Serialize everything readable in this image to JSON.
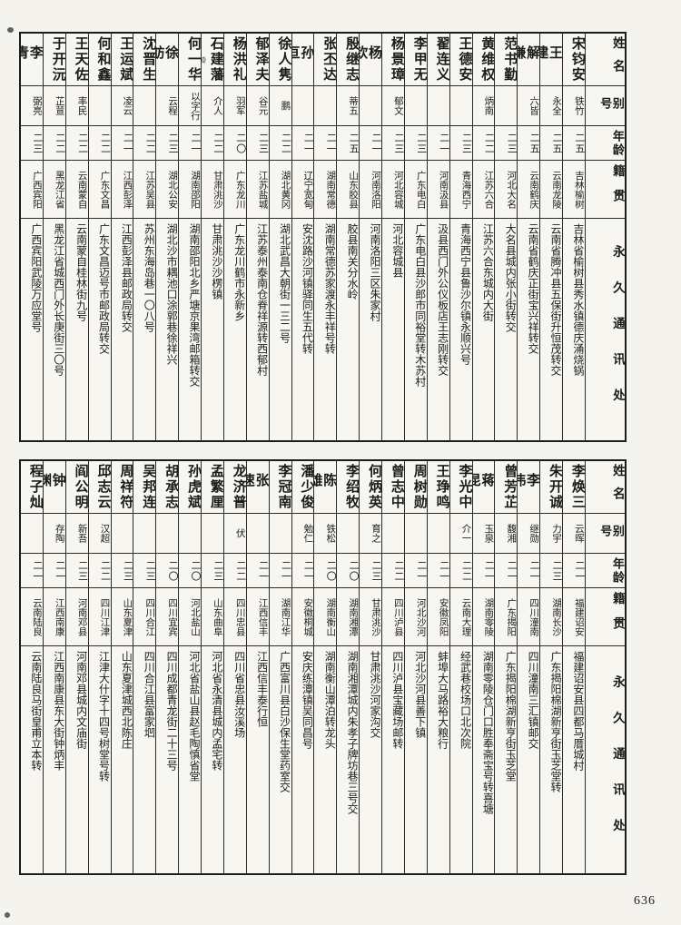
{
  "page": {
    "number": "636"
  },
  "headers": {
    "name": "姓名",
    "alias": "别号",
    "age": "年龄",
    "native": "籍贯",
    "address": "永久通讯处"
  },
  "tables": [
    {
      "entries": [
        {
          "name": "宋钧安",
          "alias": "铁竹",
          "age": "二五",
          "native": "吉林榆树",
          "address": "吉林省榆树县秀水镇德庆涌烧锅"
        },
        {
          "name": "王建",
          "alias": "永全",
          "age": "二五",
          "native": "云南龙陵",
          "address": "云南省腾冲县五保街升恒茂转交"
        },
        {
          "name": "解谦",
          "alias": "六皆",
          "age": "二五",
          "native": "云南鹤庆",
          "address": "云南省鹤庆正街宝兴祥转交"
        },
        {
          "name": "范书勤",
          "alias": "",
          "age": "二三",
          "native": "河北大名",
          "address": "大名县城内张小街转交"
        },
        {
          "name": "黄维权",
          "alias": "炳南",
          "age": "二二",
          "native": "江苏六合",
          "address": "江苏六合东城内大街"
        },
        {
          "name": "王德安",
          "alias": "",
          "age": "二三",
          "native": "青海西宁",
          "address": "青海西宁县鲁沙尔镇永顺兴号"
        },
        {
          "name": "翟连义",
          "alias": "",
          "age": "二一",
          "native": "河南汲县",
          "address": "汲县西门外公仪板店王志刚转交"
        },
        {
          "name": "李甲无",
          "alias": "",
          "age": "二三",
          "native": "广东电白",
          "address": "广东电白县沙郎市同裕堂转木苏村"
        },
        {
          "name": "杨景璋",
          "alias": "郁文",
          "age": "二三",
          "native": "河北容城",
          "address": "河北容城县"
        },
        {
          "name": "杨钦",
          "alias": "",
          "age": "二一",
          "native": "河南洛阳",
          "address": "河南洛阳三区朱家村"
        },
        {
          "name": "殷继志",
          "alias": "蒂五",
          "age": "二五",
          "native": "山东胶县",
          "address": "胶县南关分水岭"
        },
        {
          "name": "张丕达",
          "alias": "",
          "age": "二一",
          "native": "湖南常德",
          "address": "湖南常德苏家渡永丰祥号转"
        },
        {
          "name": "孙亘",
          "alias": "",
          "age": "二一",
          "native": "辽宁宽甸",
          "address": "安沈路沙河镇驿同生五代转"
        },
        {
          "name": "徐人隽",
          "alias": "鹏",
          "age": "二二",
          "native": "湖北黄冈",
          "address": "湖北武昌大朝街一三二号"
        },
        {
          "name": "郁泽夫",
          "alias": "谷元",
          "age": "二三",
          "native": "江苏盐城",
          "address": "江苏泰州泰南仓脊祥源转西郁村"
        },
        {
          "name": "杨洪礼",
          "alias": "羽军",
          "age": "二〇",
          "native": "广东龙川",
          "address": "广东龙川鹤市永新乡"
        },
        {
          "name": "石建藩",
          "alias": "介人",
          "age": "二二",
          "native": "甘肃洮沙",
          "address": "甘肃洮沙沙楞镇",
          "note": "⑽"
        },
        {
          "name": "何一华",
          "alias": "以字行",
          "age": "二一",
          "native": "湖南邵阳",
          "address": "湖南邵阳北乡严塘京果湾邮箱转交"
        },
        {
          "name": "徐舫",
          "alias": "云程",
          "age": "二三",
          "native": "湖北公安",
          "address": "湖北沙市耦池口涂郭巷徐祥兴"
        },
        {
          "name": "沈晋生",
          "alias": "",
          "age": "二二",
          "native": "江苏吴县",
          "address": "苏州东海岛巷一〇八号"
        },
        {
          "name": "王运斌",
          "alias": "凌云",
          "age": "二一",
          "native": "江西彭泽",
          "address": "江西彭泽县邮政局转交"
        },
        {
          "name": "何和鑫",
          "alias": "",
          "age": "二二",
          "native": "广东文昌",
          "address": "广东文昌迈号市邮政局转交"
        },
        {
          "name": "王天佐",
          "alias": "率民",
          "age": "二二",
          "native": "云南蒙自",
          "address": "云南蒙自桂林街九号"
        },
        {
          "name": "于开沅",
          "alias": "芷荁",
          "age": "二二",
          "native": "黑龙江省",
          "address": "黑龙江省城西门外长庚街三〇号"
        },
        {
          "name": "李青",
          "alias": "弼亮",
          "age": "二三",
          "native": "广西宾阳",
          "address": "广西宾阳武陵万应堂号"
        }
      ]
    },
    {
      "entries": [
        {
          "name": "李焕三",
          "alias": "云晖",
          "age": "二一",
          "native": "福建诏安",
          "address": "福建诏安县四都马厝城村"
        },
        {
          "name": "朱开诚",
          "alias": "力宇",
          "age": "二三",
          "native": "湖南长沙",
          "address": "广东揭阳棉湖新亨街玉芝堂转"
        },
        {
          "name": "李伟",
          "alias": "继勋",
          "age": "二一",
          "native": "四川潼南",
          "address": "四川潼南三汇镇邮交"
        },
        {
          "name": "曾芳芷",
          "alias": "馥湘",
          "age": "二一",
          "native": "广东揭阳",
          "address": "广东揭阳棉湖新亨街玉芝堂"
        },
        {
          "name": "蒋昆",
          "alias": "玉泉",
          "age": "二一",
          "native": "湖南零陵",
          "address": "湖南零陵仓门口胜奉斋宝号转喜塘"
        },
        {
          "name": "李光中",
          "alias": "介一",
          "age": "二二",
          "native": "云南大理",
          "address": "经武巷校场口北次院"
        },
        {
          "name": "王琤鸣",
          "alias": "",
          "age": "二一",
          "native": "安徽凤阳",
          "address": "蚌埠大马路裕大粮行"
        },
        {
          "name": "周树勋",
          "alias": "",
          "age": "二一",
          "native": "河北沙河",
          "address": "河北沙河县善下镇"
        },
        {
          "name": "曾志中",
          "alias": "",
          "age": "二二",
          "native": "四川泸县",
          "address": "四川泸县宝藏场邮转"
        },
        {
          "name": "何炳英",
          "alias": "育之",
          "age": "二三",
          "native": "甘肃洮沙",
          "address": "甘肃洮沙河家沟交"
        },
        {
          "name": "李绍牧",
          "alias": "",
          "age": "二〇",
          "native": "湖南湘潭",
          "address": "湖南湘潭城内朱孝子牌坊巷三号交"
        },
        {
          "name": "陈雄",
          "alias": "铁松",
          "age": "二〇",
          "native": "湖南衡山",
          "address": "湖南衡山潭泊转龙头"
        },
        {
          "name": "潘少俊",
          "alias": "勉仁",
          "age": "二一",
          "native": "安徽桐城",
          "address": "安庆练潭镇吴同昌号"
        },
        {
          "name": "李冠南",
          "alias": "",
          "age": "二一",
          "native": "湖南江华",
          "address": "广西富川县白沙保生堂药室交"
        },
        {
          "name": "张速",
          "alias": "",
          "age": "二一",
          "native": "江西信丰",
          "address": "江西信丰泰行恒"
        },
        {
          "name": "龙济普",
          "alias": "伏",
          "age": "二二",
          "native": "四川忠县",
          "address": "四川省忠县汝溪场"
        },
        {
          "name": "孟繁厘",
          "alias": "",
          "age": "二三",
          "native": "山东曲阜",
          "address": "河北省永清县城内孟宅转"
        },
        {
          "name": "孙虎斌",
          "alias": "",
          "age": "二〇",
          "native": "河北盐山",
          "address": "河北省盐山县赵毛陶慎省堂"
        },
        {
          "name": "胡承志",
          "alias": "",
          "age": "二〇",
          "native": "四川宜宾",
          "address": "四川成都青龙街二十三号"
        },
        {
          "name": "吴邦连",
          "alias": "",
          "age": "二三",
          "native": "四川合江",
          "address": "四川合江县富家垇"
        },
        {
          "name": "周祥符",
          "alias": "",
          "age": "二三",
          "native": "山东夏津",
          "address": "山东夏津城西北陈庄"
        },
        {
          "name": "邱志云",
          "alias": "汉超",
          "age": "二二",
          "native": "四川江津",
          "address": "江津大什字十四号树堂号转"
        },
        {
          "name": "阎公明",
          "alias": "新吾",
          "age": "二三",
          "native": "河南邓县",
          "address": "河南邓县城内文庙街"
        },
        {
          "name": "钟渊",
          "alias": "存陶",
          "age": "二一",
          "native": "江西南康",
          "address": "江西南康县东大街钟炳丰"
        },
        {
          "name": "程子灿",
          "alias": "",
          "age": "二一",
          "native": "云南陆良",
          "address": "云南陆良马街皇甫立本转"
        }
      ]
    }
  ]
}
